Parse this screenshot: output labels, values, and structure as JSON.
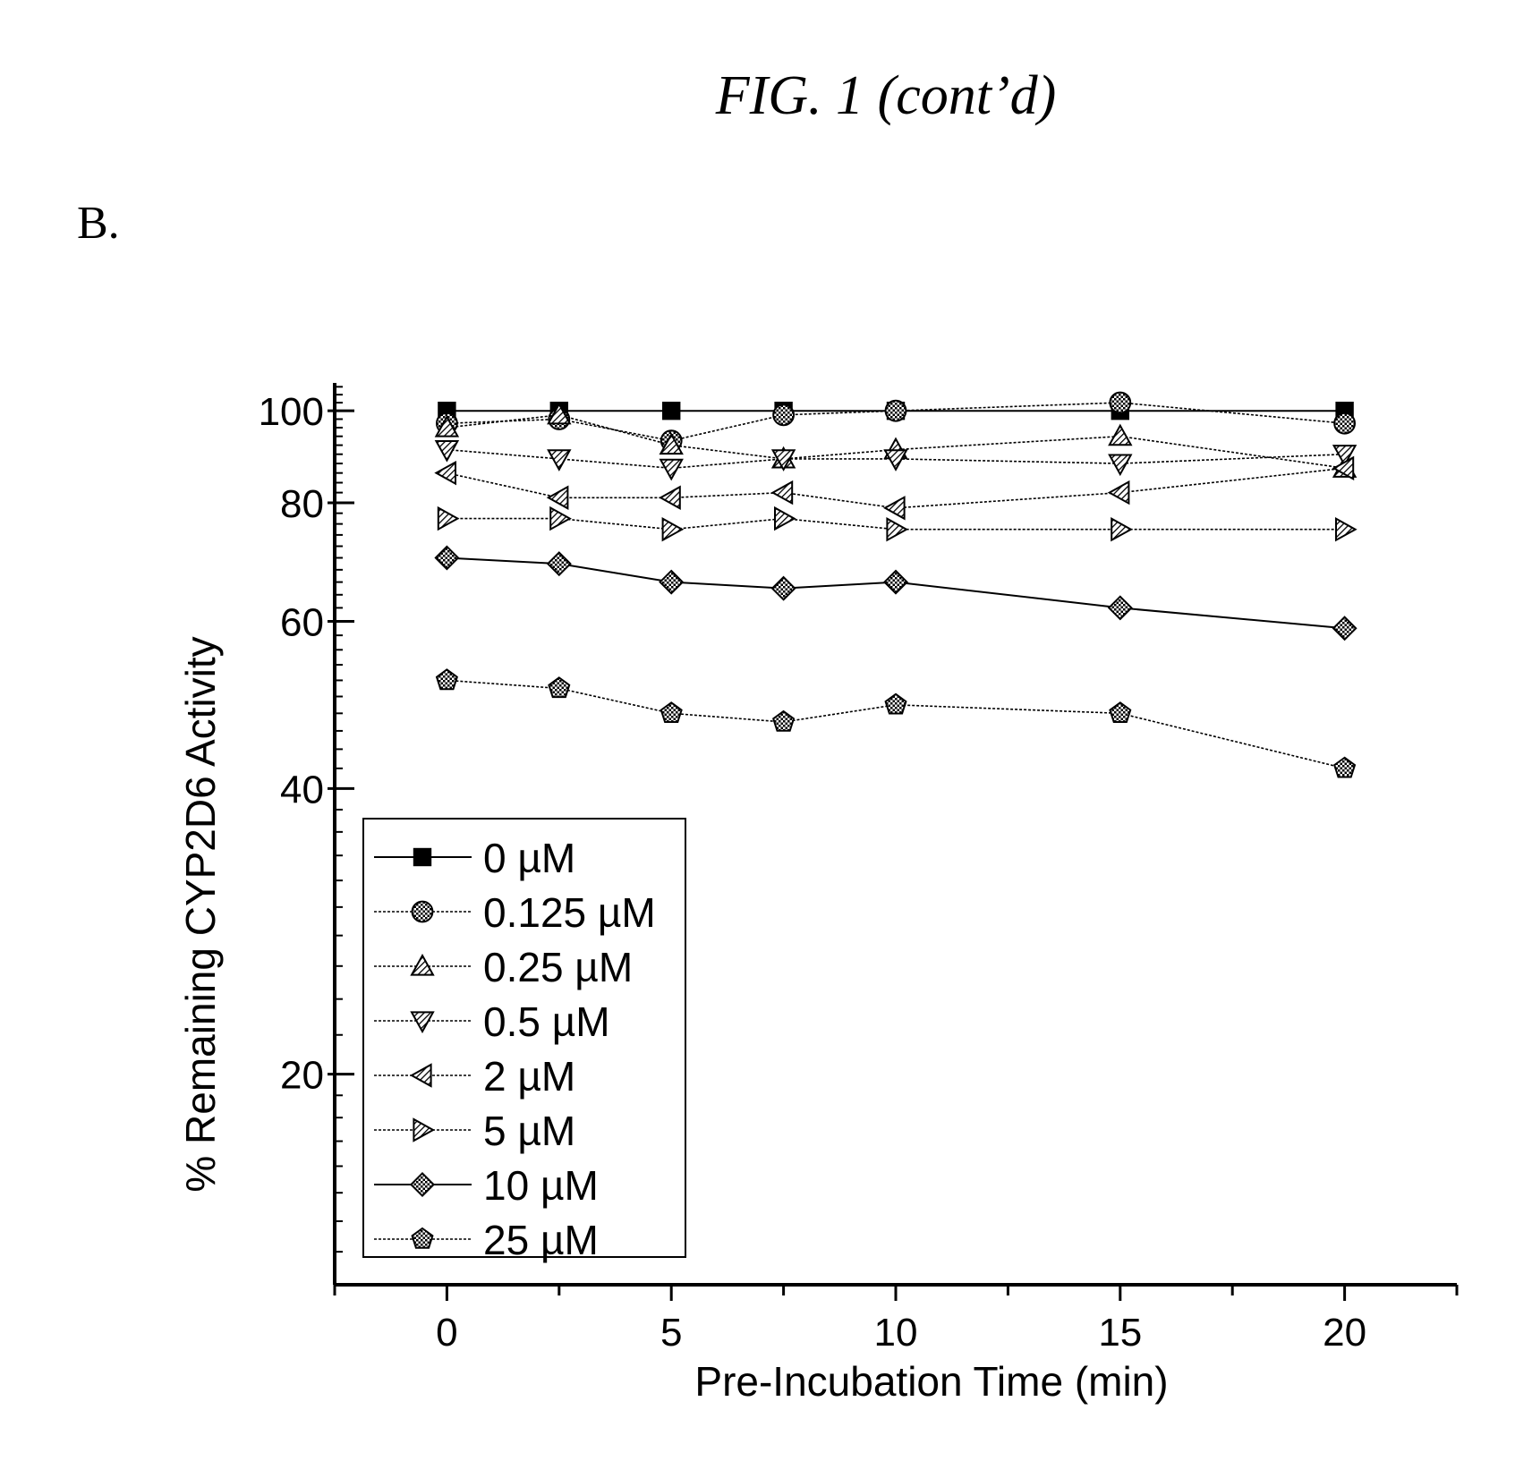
{
  "figure": {
    "title": "FIG. 1 (cont’d)",
    "panel": "B."
  },
  "chart_data": {
    "type": "line",
    "xlabel": "Pre-Incubation Time (min)",
    "ylabel": "% Remaining CYP2D6 Activity",
    "y_scale": "log",
    "xlim": [
      -2.5,
      22.5
    ],
    "ylim": [
      12,
      107
    ],
    "x_ticks": [
      0,
      5,
      10,
      15,
      20
    ],
    "y_ticks": [
      20,
      40,
      60,
      80,
      100
    ],
    "grid": false,
    "legend_position": "bottom-left",
    "x": [
      0,
      2.5,
      5,
      7.5,
      10,
      15,
      20
    ],
    "series": [
      {
        "name": "0 µM",
        "marker": "square",
        "line": "solid",
        "values": [
          100,
          100,
          100,
          100,
          100,
          100,
          100
        ]
      },
      {
        "name": "0.125 µM",
        "marker": "circle",
        "line": "dotted",
        "values": [
          97,
          98,
          93,
          99,
          100,
          102,
          97
        ]
      },
      {
        "name": "0.25 µM",
        "marker": "triangle-up",
        "line": "dotted",
        "values": [
          96,
          99,
          92,
          89,
          91,
          94,
          87
        ]
      },
      {
        "name": "0.5 µM",
        "marker": "triangle-down",
        "line": "dotted",
        "values": [
          91,
          89,
          87,
          89,
          89,
          88,
          90
        ]
      },
      {
        "name": "2 µM",
        "marker": "triangle-left",
        "line": "dotted",
        "values": [
          86,
          81,
          81,
          82,
          79,
          82,
          87
        ]
      },
      {
        "name": "5 µM",
        "marker": "triangle-right",
        "line": "dotted",
        "values": [
          77,
          77,
          75,
          77,
          75,
          75,
          75
        ]
      },
      {
        "name": "10 µM",
        "marker": "diamond",
        "line": "solid",
        "values": [
          70,
          69,
          66,
          65,
          66,
          62,
          59
        ]
      },
      {
        "name": "25 µM",
        "marker": "pentagon",
        "line": "dotted",
        "values": [
          52,
          51,
          48,
          47,
          49,
          48,
          42
        ]
      }
    ]
  }
}
